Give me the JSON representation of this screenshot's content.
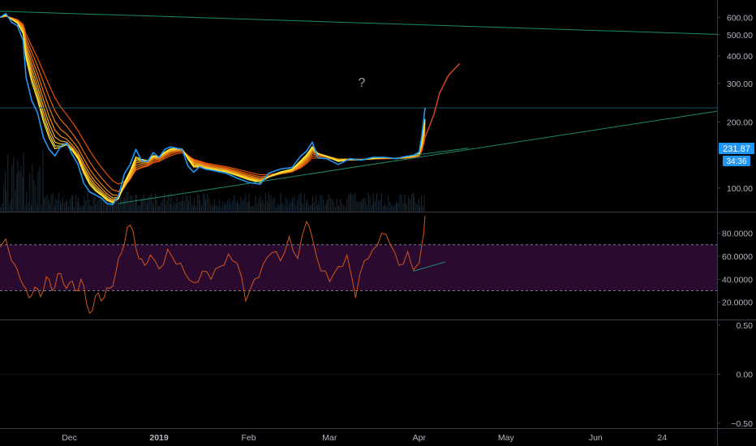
{
  "colors": {
    "background": "#000000",
    "axis_text": "#b2b5be",
    "separator": "#363a45",
    "price_line": "#2196f3",
    "ribbon_fast": "#ffeb3b",
    "ribbon_slow": "#e65100",
    "projection": "#e0472a",
    "trendline": "#1b8a6b",
    "rsi_line": "#d2571b",
    "rsi_band": "#2a0a2e",
    "rsi_dash": "#787b86",
    "price_tag_bg": "#2196f3",
    "volume": "#2a3f52"
  },
  "annotation": {
    "question_mark": "?"
  },
  "price_tag": {
    "value": "231.87",
    "countdown": "34:36"
  },
  "chart_data": [
    {
      "type": "line",
      "panel": "price",
      "scale": "log",
      "y_ticks": [
        100,
        200,
        300,
        400,
        500,
        600
      ],
      "y_tick_labels": [
        "100.00",
        "200.00",
        "300.00",
        "400.00",
        "500.00",
        "600.00"
      ],
      "ylim": [
        78,
        720
      ],
      "x_range": [
        "2018-11-07",
        "2019-07-13"
      ],
      "x_ticks": [
        {
          "label": "Dec",
          "date": "2018-12-01"
        },
        {
          "label": "2019",
          "date": "2019-01-01"
        },
        {
          "label": "Feb",
          "date": "2019-02-01"
        },
        {
          "label": "Mar",
          "date": "2019-03-01"
        },
        {
          "label": "Apr",
          "date": "2019-04-01"
        },
        {
          "label": "May",
          "date": "2019-05-01"
        },
        {
          "label": "Jun",
          "date": "2019-06-01"
        },
        {
          "label": "24",
          "date": "2019-06-24"
        }
      ],
      "series": [
        {
          "role": "price",
          "points": [
            [
              "2018-11-07",
              600
            ],
            [
              "2018-11-09",
              625
            ],
            [
              "2018-11-11",
              570
            ],
            [
              "2018-11-13",
              550
            ],
            [
              "2018-11-15",
              470
            ],
            [
              "2018-11-16",
              320
            ],
            [
              "2018-11-18",
              250
            ],
            [
              "2018-11-20",
              220
            ],
            [
              "2018-11-22",
              170
            ],
            [
              "2018-11-24",
              150
            ],
            [
              "2018-11-26",
              140
            ],
            [
              "2018-11-28",
              155
            ],
            [
              "2018-11-30",
              160
            ],
            [
              "2018-12-02",
              142
            ],
            [
              "2018-12-04",
              128
            ],
            [
              "2018-12-06",
              105
            ],
            [
              "2018-12-08",
              96
            ],
            [
              "2018-12-10",
              93
            ],
            [
              "2018-12-12",
              90
            ],
            [
              "2018-12-14",
              85
            ],
            [
              "2018-12-16",
              84
            ],
            [
              "2018-12-18",
              92
            ],
            [
              "2018-12-20",
              116
            ],
            [
              "2018-12-22",
              128
            ],
            [
              "2018-12-24",
              150
            ],
            [
              "2018-12-26",
              133
            ],
            [
              "2018-12-28",
              132
            ],
            [
              "2018-12-30",
              145
            ],
            [
              "2019-01-01",
              138
            ],
            [
              "2019-01-03",
              150
            ],
            [
              "2019-01-05",
              154
            ],
            [
              "2019-01-07",
              152
            ],
            [
              "2019-01-09",
              150
            ],
            [
              "2019-01-11",
              126
            ],
            [
              "2019-01-13",
              118
            ],
            [
              "2019-01-15",
              125
            ],
            [
              "2019-01-17",
              122
            ],
            [
              "2019-01-20",
              120
            ],
            [
              "2019-01-24",
              117
            ],
            [
              "2019-01-28",
              111
            ],
            [
              "2019-02-01",
              106
            ],
            [
              "2019-02-05",
              104
            ],
            [
              "2019-02-08",
              117
            ],
            [
              "2019-02-12",
              122
            ],
            [
              "2019-02-16",
              124
            ],
            [
              "2019-02-19",
              140
            ],
            [
              "2019-02-21",
              147
            ],
            [
              "2019-02-23",
              162
            ],
            [
              "2019-02-25",
              137
            ],
            [
              "2019-02-28",
              136
            ],
            [
              "2019-03-04",
              128
            ],
            [
              "2019-03-08",
              136
            ],
            [
              "2019-03-12",
              134
            ],
            [
              "2019-03-16",
              138
            ],
            [
              "2019-03-20",
              138
            ],
            [
              "2019-03-24",
              136
            ],
            [
              "2019-03-27",
              139
            ],
            [
              "2019-03-30",
              141
            ],
            [
              "2019-04-01",
              146
            ],
            [
              "2019-04-02",
              178
            ],
            [
              "2019-04-03",
              232
            ]
          ]
        },
        {
          "role": "projection",
          "points": [
            [
              "2019-04-03",
              170
            ],
            [
              "2019-04-06",
              215
            ],
            [
              "2019-04-08",
              270
            ],
            [
              "2019-04-11",
              325
            ],
            [
              "2019-04-15",
              370
            ]
          ]
        },
        {
          "role": "trendline",
          "points": [
            [
              "2018-11-07",
              640
            ],
            [
              "2019-07-13",
              502
            ]
          ]
        },
        {
          "role": "trendline",
          "points": [
            [
              "2018-12-18",
              85
            ],
            [
              "2019-07-13",
              224
            ]
          ]
        },
        {
          "role": "trendline",
          "points": [
            [
              "2019-03-30",
              141
            ],
            [
              "2019-04-18",
              152
            ]
          ]
        },
        {
          "role": "horizontal-level",
          "points": [
            [
              "2018-11-07",
              231.87
            ],
            [
              "2019-07-13",
              231.87
            ]
          ]
        }
      ]
    },
    {
      "type": "line",
      "panel": "rsi",
      "y_ticks": [
        20,
        40,
        60,
        80
      ],
      "y_tick_labels": [
        "20.0000",
        "40.0000",
        "60.0000",
        "80.0000"
      ],
      "ylim": [
        5,
        98
      ],
      "band": [
        30,
        70
      ],
      "x_range": [
        "2018-11-07",
        "2019-07-13"
      ],
      "series": [
        {
          "role": "rsi",
          "points": [
            [
              "2018-11-07",
              68
            ],
            [
              "2018-11-09",
              75
            ],
            [
              "2018-11-11",
              56
            ],
            [
              "2018-11-13",
              48
            ],
            [
              "2018-11-15",
              35
            ],
            [
              "2018-11-17",
              24
            ],
            [
              "2018-11-19",
              33
            ],
            [
              "2018-11-21",
              25
            ],
            [
              "2018-11-23",
              42
            ],
            [
              "2018-11-25",
              30
            ],
            [
              "2018-11-27",
              45
            ],
            [
              "2018-11-29",
              36
            ],
            [
              "2018-12-01",
              37
            ],
            [
              "2018-12-03",
              30
            ],
            [
              "2018-12-05",
              40
            ],
            [
              "2018-12-07",
              18
            ],
            [
              "2018-12-09",
              13
            ],
            [
              "2018-12-11",
              28
            ],
            [
              "2018-12-13",
              24
            ],
            [
              "2018-12-15",
              32
            ],
            [
              "2018-12-17",
              45
            ],
            [
              "2018-12-19",
              63
            ],
            [
              "2018-12-21",
              85
            ],
            [
              "2018-12-23",
              82
            ],
            [
              "2018-12-25",
              58
            ],
            [
              "2018-12-27",
              52
            ],
            [
              "2018-12-29",
              61
            ],
            [
              "2019-01-01",
              49
            ],
            [
              "2019-01-04",
              66
            ],
            [
              "2019-01-07",
              53
            ],
            [
              "2019-01-10",
              45
            ],
            [
              "2019-01-13",
              37
            ],
            [
              "2019-01-16",
              47
            ],
            [
              "2019-01-19",
              40
            ],
            [
              "2019-01-22",
              51
            ],
            [
              "2019-01-25",
              62
            ],
            [
              "2019-01-28",
              54
            ],
            [
              "2019-01-31",
              21
            ],
            [
              "2019-02-03",
              40
            ],
            [
              "2019-02-06",
              53
            ],
            [
              "2019-02-09",
              63
            ],
            [
              "2019-02-12",
              56
            ],
            [
              "2019-02-15",
              77
            ],
            [
              "2019-02-18",
              58
            ],
            [
              "2019-02-21",
              90
            ],
            [
              "2019-02-23",
              76
            ],
            [
              "2019-02-26",
              47
            ],
            [
              "2019-03-01",
              38
            ],
            [
              "2019-03-04",
              51
            ],
            [
              "2019-03-07",
              61
            ],
            [
              "2019-03-10",
              24
            ],
            [
              "2019-03-13",
              56
            ],
            [
              "2019-03-16",
              66
            ],
            [
              "2019-03-19",
              80
            ],
            [
              "2019-03-22",
              70
            ],
            [
              "2019-03-25",
              52
            ],
            [
              "2019-03-28",
              64
            ],
            [
              "2019-03-30",
              48
            ],
            [
              "2019-04-01",
              54
            ],
            [
              "2019-04-02",
              72
            ],
            [
              "2019-04-03",
              95
            ]
          ]
        },
        {
          "role": "trendline",
          "points": [
            [
              "2019-03-30",
              47
            ],
            [
              "2019-04-10",
              55
            ]
          ]
        }
      ]
    },
    {
      "type": "line",
      "panel": "oscillator",
      "y_ticks": [
        -0.5,
        0.0,
        0.5
      ],
      "y_tick_labels": [
        "−0.50",
        "0.00",
        "0.50"
      ],
      "ylim": [
        -0.55,
        0.55
      ],
      "series": []
    }
  ]
}
